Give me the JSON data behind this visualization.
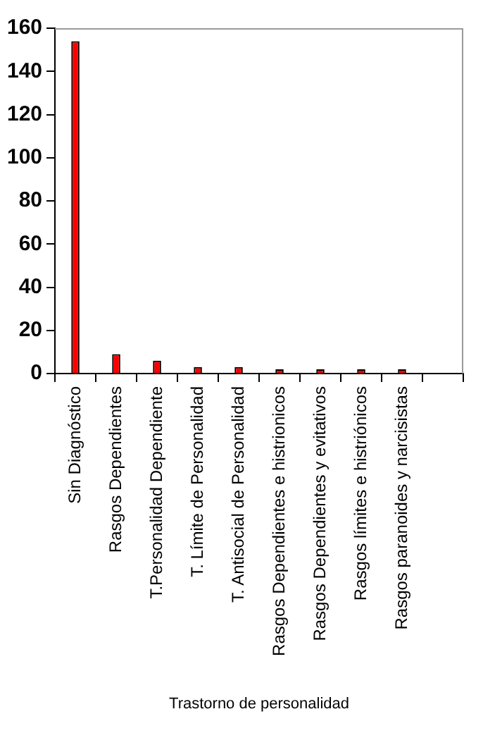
{
  "chart_data": {
    "type": "bar",
    "xlabel": "Trastorno de personalidad",
    "categories": [
      "Sin Diagnóstico",
      "Rasgos Dependientes",
      "T.Personalidad Dependiente",
      "T. Límite de Personalidad",
      "T. Antisocial de Personalidad",
      "Rasgos Dependientes e histrionicos",
      "Rasgos Dependientes y evitativos",
      "Rasgos límites e histriónicos",
      "Rasgos paranoides y narcisistas",
      null
    ],
    "values": [
      154,
      9,
      6,
      3,
      3,
      2,
      2,
      2,
      2,
      null
    ],
    "color": "#ff0000",
    "ylim": [
      0,
      160
    ],
    "yticks": [
      0,
      20,
      40,
      60,
      80,
      100,
      120,
      140,
      160
    ],
    "grid": false,
    "legend": false
  }
}
